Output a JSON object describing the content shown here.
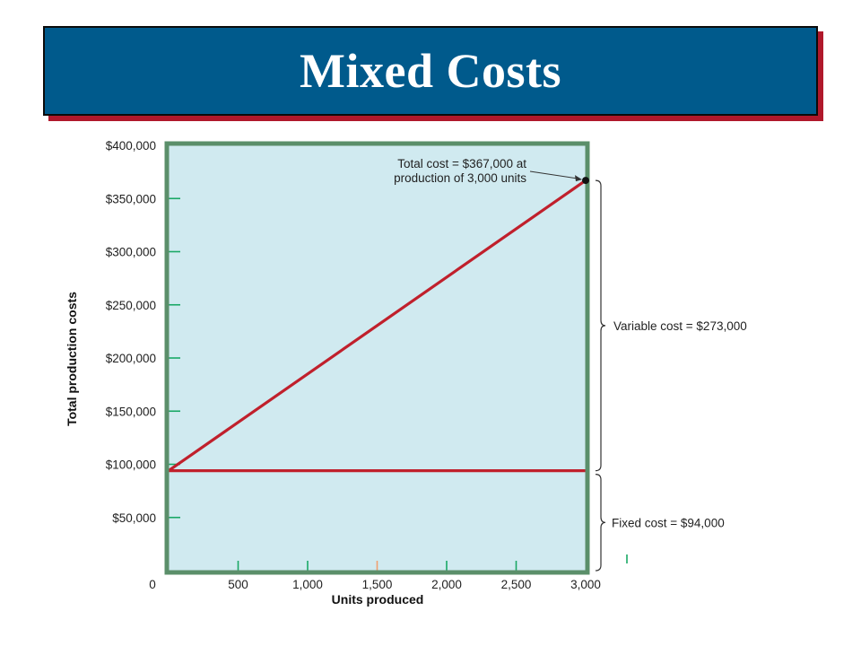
{
  "header": {
    "title": "Mixed Costs"
  },
  "chart_data": {
    "type": "line",
    "title": "Mixed Costs",
    "xlabel": "Units produced",
    "ylabel": "Total production costs",
    "xlim": [
      0,
      3000
    ],
    "ylim": [
      0,
      400000
    ],
    "x_ticks": [
      0,
      500,
      1000,
      1500,
      2000,
      2500,
      3000
    ],
    "x_tick_labels": [
      "0",
      "500",
      "1,000",
      "1,500",
      "2,000",
      "2,500",
      "3,000"
    ],
    "y_ticks": [
      50000,
      100000,
      150000,
      200000,
      250000,
      300000,
      350000,
      400000
    ],
    "y_tick_labels": [
      "$50,000",
      "$100,000",
      "$150,000",
      "$200,000",
      "$250,000",
      "$300,000",
      "$350,000",
      "$400,000"
    ],
    "grid": false,
    "series": [
      {
        "values": [
          {
            "x": 0,
            "y": 94000
          },
          {
            "x": 3000,
            "y": 367000
          }
        ]
      },
      {
        "values": [
          {
            "x": 0,
            "y": 94000
          },
          {
            "x": 3000,
            "y": 94000
          }
        ]
      }
    ],
    "highlight_point": {
      "x": 3000,
      "y": 367000
    },
    "annotations": {
      "total_line1": "Total cost = $367,000 at",
      "total_line2": "production of 3,000 units",
      "variable": "Variable cost = $273,000",
      "fixed": "Fixed cost = $94,000"
    },
    "colors": {
      "plot_bg": "#d0eaf0",
      "frame": "#5b8f6a",
      "line": "#c0202c",
      "tick_mark": "#1aa866",
      "accent_tick": "#f0a070"
    }
  }
}
